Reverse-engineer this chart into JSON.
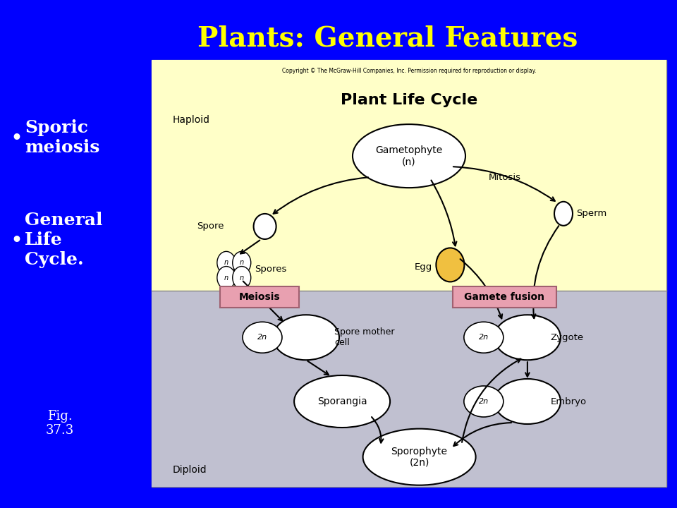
{
  "title": "Plants: General Features",
  "title_color": "#FFFF00",
  "bg_color": "#0000FF",
  "bullet_points": [
    "Sporic\nmeiosis",
    "General\nLife\nCycle."
  ],
  "fig_label": "Fig.\n37.3",
  "diagram_title": "Plant Life Cycle",
  "copyright_text": "Copyright © The McGraw-Hill Companies, Inc. Permission required for reproduction or display.",
  "haploid_label": "Haploid",
  "diploid_label": "Diploid",
  "haploid_bg": "#FFFFC8",
  "diploid_bg": "#C0C0D0",
  "meiosis_color": "#E8A0B0",
  "gamete_color": "#E8A0B0"
}
